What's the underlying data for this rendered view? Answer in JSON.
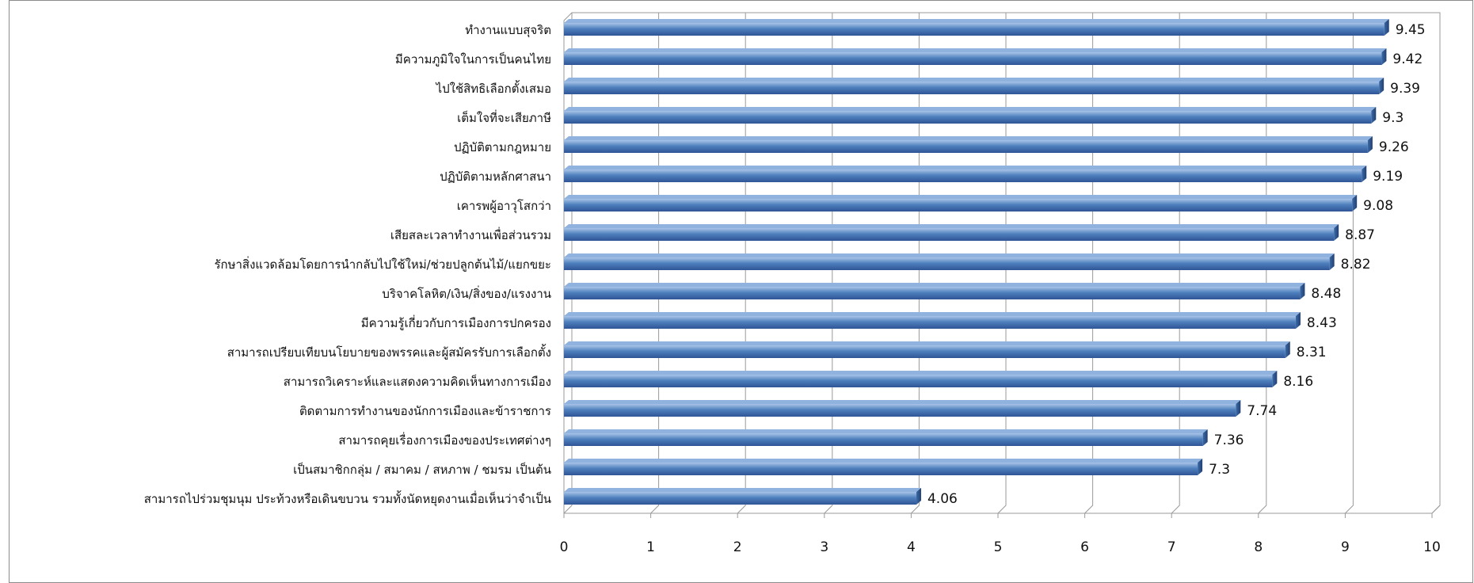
{
  "chart_data": {
    "type": "bar",
    "orientation": "horizontal",
    "categories": [
      "ทำงานแบบสุจริต",
      "มีความภูมิใจในการเป็นคนไทย",
      "ไปใช้สิทธิเลือกตั้งเสมอ",
      "เต็มใจที่จะเสียภาษี",
      "ปฏิบัติตามกฎหมาย",
      "ปฏิบัติตามหลักศาสนา",
      "เคารพผู้อาวุโสกว่า",
      "เสียสละเวลาทำงานเพื่อส่วนรวม",
      "รักษาสิ่งแวดล้อมโดยการนำกลับไปใช้ใหม่/ช่วยปลูกต้นไม้/แยกขยะ",
      "บริจาคโลหิต/เงิน/สิ่งของ/แรงงาน",
      "มีความรู้เกี่ยวกับการเมืองการปกครอง",
      "สามารถเปรียบเทียบนโยบายของพรรคและผู้สมัครรับการเลือกตั้ง",
      "สามารถวิเคราะห์และแสดงความคิดเห็นทางการเมือง",
      "ติดตามการทำงานของนักการเมืองและข้าราชการ",
      "สามารถคุยเรื่องการเมืองของประเทศต่างๆ",
      "เป็นสมาชิกกลุ่ม / สมาคม / สหภาพ / ชมรม เป็นต้น",
      "สามารถไปร่วมชุมนุม ประท้วงหรือเดินขบวน รวมทั้งนัดหยุดงานเมื่อเห็นว่าจำเป็น"
    ],
    "values": [
      9.45,
      9.42,
      9.39,
      9.3,
      9.26,
      9.19,
      9.08,
      8.87,
      8.82,
      8.48,
      8.43,
      8.31,
      8.16,
      7.74,
      7.36,
      7.3,
      4.06
    ],
    "value_labels": [
      "9.45",
      "9.42",
      "9.39",
      "9.3",
      "9.26",
      "9.19",
      "9.08",
      "8.87",
      "8.82",
      "8.48",
      "8.43",
      "8.31",
      "8.16",
      "7.74",
      "7.36",
      "7.3",
      "4.06"
    ],
    "x_ticks": [
      "0",
      "1",
      "2",
      "3",
      "4",
      "5",
      "6",
      "7",
      "8",
      "9",
      "10"
    ],
    "xlim": [
      0,
      10
    ],
    "grid": true,
    "legend": "none",
    "colors": {
      "bar": "#4f81bd",
      "bar_light": "#a9c4e8",
      "bar_dark": "#2f5597",
      "grid": "#9a9a9a"
    }
  }
}
